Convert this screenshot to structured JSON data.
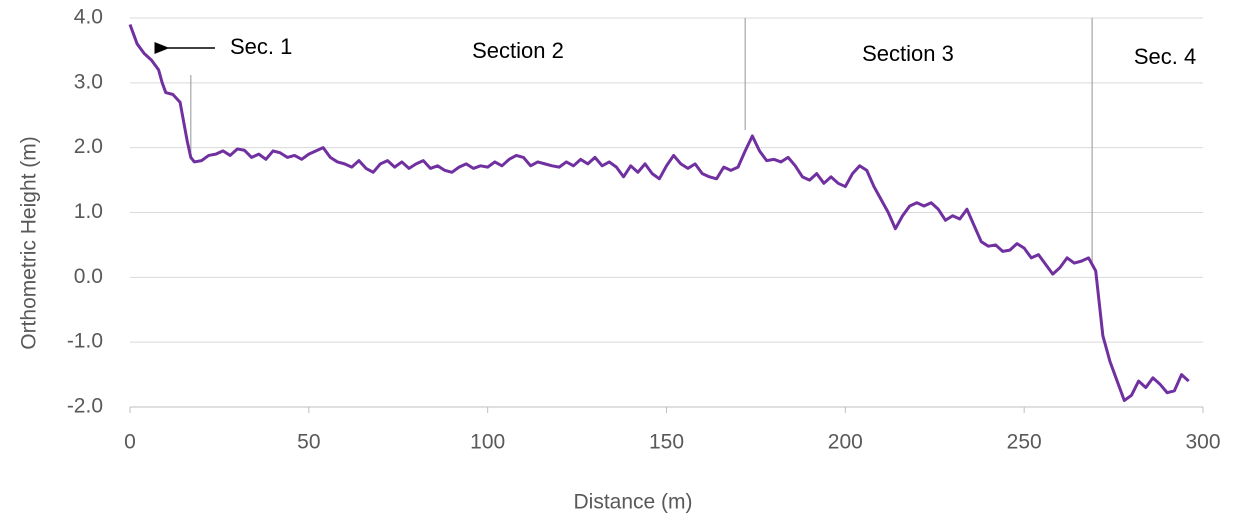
{
  "chart_data": {
    "type": "line",
    "x_label": "Distance (m)",
    "y_label": "Orthometric  Height (m)",
    "x": [
      0,
      2,
      4,
      6,
      8,
      9,
      10,
      12,
      14,
      15,
      16,
      17,
      18,
      20,
      22,
      24,
      26,
      28,
      30,
      32,
      34,
      36,
      38,
      40,
      42,
      44,
      46,
      48,
      50,
      52,
      54,
      56,
      58,
      60,
      62,
      64,
      66,
      68,
      70,
      72,
      74,
      76,
      78,
      80,
      82,
      84,
      86,
      88,
      90,
      92,
      94,
      96,
      98,
      100,
      102,
      104,
      106,
      108,
      110,
      112,
      114,
      116,
      118,
      120,
      122,
      124,
      126,
      128,
      130,
      132,
      134,
      136,
      138,
      140,
      142,
      144,
      146,
      148,
      150,
      152,
      154,
      156,
      158,
      160,
      162,
      164,
      166,
      168,
      170,
      172,
      174,
      176,
      178,
      180,
      182,
      184,
      186,
      188,
      190,
      192,
      194,
      196,
      198,
      200,
      202,
      204,
      206,
      208,
      210,
      212,
      214,
      216,
      218,
      220,
      222,
      224,
      226,
      228,
      230,
      232,
      234,
      236,
      238,
      240,
      242,
      244,
      246,
      248,
      250,
      252,
      254,
      256,
      258,
      260,
      262,
      264,
      266,
      268,
      270,
      271,
      272,
      274,
      276,
      278,
      280,
      282,
      284,
      286,
      288,
      290,
      292,
      294,
      296
    ],
    "series": [
      {
        "color": "#7030a0",
        "values": [
          3.9,
          3.6,
          3.45,
          3.35,
          3.2,
          3.0,
          2.85,
          2.82,
          2.7,
          2.4,
          2.1,
          1.85,
          1.78,
          1.8,
          1.88,
          1.9,
          1.95,
          1.88,
          1.98,
          1.96,
          1.85,
          1.9,
          1.82,
          1.95,
          1.92,
          1.85,
          1.88,
          1.82,
          1.9,
          1.95,
          2.0,
          1.85,
          1.78,
          1.75,
          1.7,
          1.8,
          1.68,
          1.62,
          1.75,
          1.8,
          1.7,
          1.78,
          1.68,
          1.75,
          1.8,
          1.68,
          1.72,
          1.65,
          1.62,
          1.7,
          1.75,
          1.68,
          1.72,
          1.7,
          1.78,
          1.72,
          1.82,
          1.88,
          1.85,
          1.72,
          1.78,
          1.75,
          1.72,
          1.7,
          1.78,
          1.72,
          1.82,
          1.75,
          1.85,
          1.72,
          1.78,
          1.7,
          1.55,
          1.72,
          1.62,
          1.75,
          1.6,
          1.52,
          1.72,
          1.88,
          1.75,
          1.68,
          1.75,
          1.6,
          1.55,
          1.52,
          1.7,
          1.65,
          1.7,
          1.95,
          2.18,
          1.95,
          1.8,
          1.82,
          1.78,
          1.85,
          1.72,
          1.55,
          1.5,
          1.6,
          1.45,
          1.55,
          1.45,
          1.4,
          1.6,
          1.72,
          1.65,
          1.4,
          1.2,
          1.0,
          0.75,
          0.95,
          1.1,
          1.15,
          1.1,
          1.15,
          1.05,
          0.88,
          0.95,
          0.9,
          1.05,
          0.8,
          0.55,
          0.48,
          0.5,
          0.4,
          0.42,
          0.52,
          0.45,
          0.3,
          0.35,
          0.2,
          0.05,
          0.15,
          0.3,
          0.22,
          0.25,
          0.3,
          0.1,
          -0.4,
          -0.9,
          -1.3,
          -1.6,
          -1.9,
          -1.82,
          -1.6,
          -1.7,
          -1.55,
          -1.65,
          -1.78,
          -1.75,
          -1.5,
          -1.6
        ]
      }
    ],
    "xlim": [
      0,
      300
    ],
    "xticks": [
      0,
      50,
      100,
      150,
      200,
      250,
      300
    ],
    "ylim": [
      -2,
      4
    ],
    "yticks": [
      {
        "value": -2,
        "label": "-2.0"
      },
      {
        "value": -1,
        "label": "-1.0"
      },
      {
        "value": 0,
        "label": "0.0"
      },
      {
        "value": 1,
        "label": "1.0"
      },
      {
        "value": 2,
        "label": "2.0"
      },
      {
        "value": 3,
        "label": "3.0"
      },
      {
        "value": 4,
        "label": "4.0"
      }
    ],
    "grid": true,
    "dividers": [
      17,
      172,
      269
    ],
    "annotations": [
      "Sec. 1",
      "Section 2",
      "Section 3",
      "Sec. 4"
    ]
  }
}
